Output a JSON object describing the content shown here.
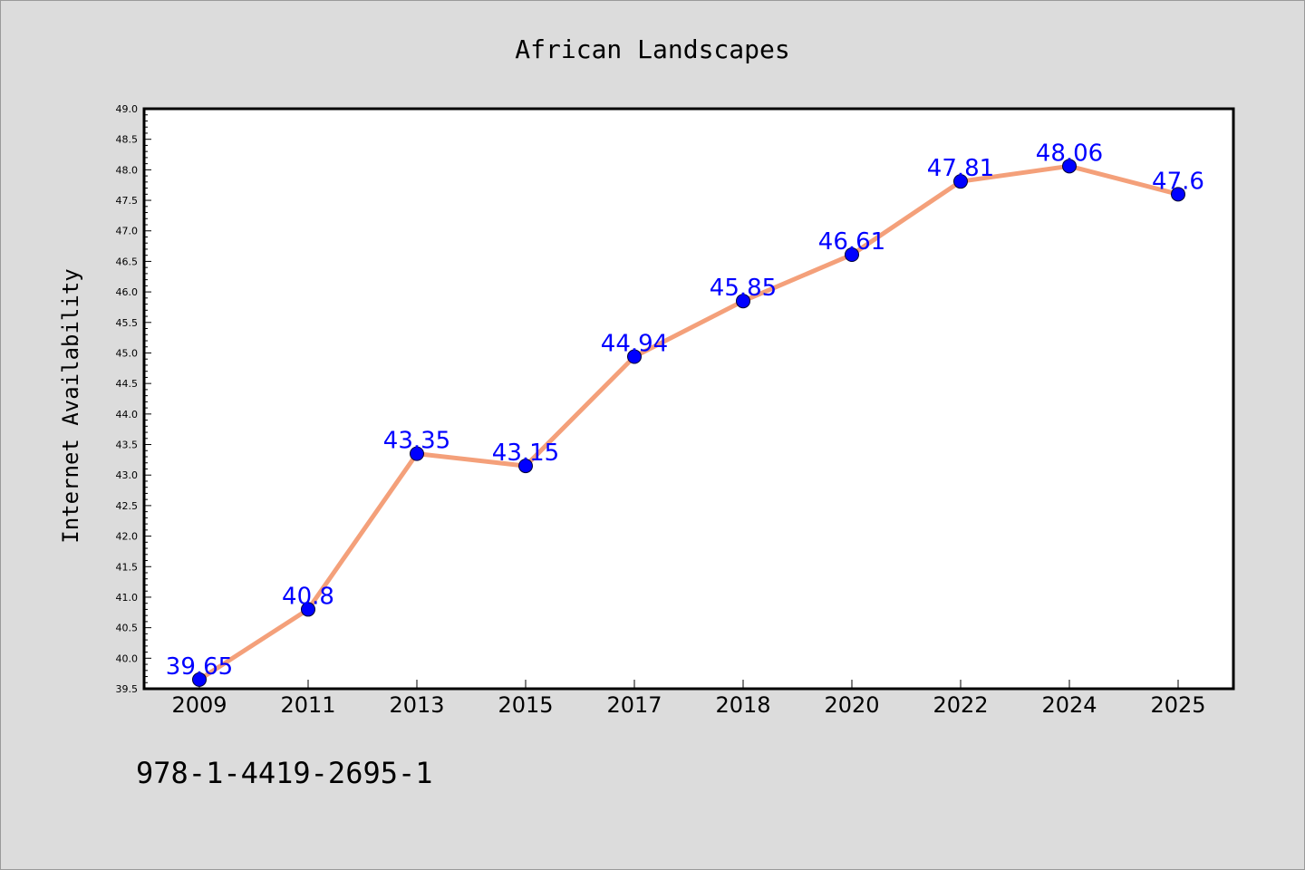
{
  "chart_data": {
    "type": "line",
    "title": "African Landscapes",
    "xlabel": "",
    "ylabel": "Internet Availability",
    "categories": [
      "2009",
      "2011",
      "2013",
      "2015",
      "2017",
      "2018",
      "2020",
      "2022",
      "2024",
      "2025"
    ],
    "series": [
      {
        "values": [
          39.65,
          40.8,
          43.35,
          43.15,
          44.94,
          45.85,
          46.61,
          47.81,
          48.06,
          47.6
        ],
        "labels": [
          "39.65",
          "40.8",
          "43.35",
          "43.15",
          "44.94",
          "45.85",
          "46.61",
          "47.81",
          "48.06",
          "47.6"
        ],
        "line_color": "#f4a07a",
        "marker_color": "#0000ff"
      }
    ],
    "ylim": [
      39.5,
      49.0
    ],
    "yticks": [
      "39.5",
      "40.0",
      "40.5",
      "41.0",
      "41.5",
      "42.0",
      "42.5",
      "43.0",
      "43.5",
      "44.0",
      "44.5",
      "45.0",
      "45.5",
      "46.0",
      "46.5",
      "47.0",
      "47.5",
      "48.0",
      "48.5",
      "49.0"
    ],
    "grid": false,
    "legend": "none",
    "label_color": "#0000ff"
  },
  "footnote": "978-1-4419-2695-1",
  "colors": {
    "background": "#dcdcdc",
    "plot_background": "#ffffff",
    "axis": "#000000"
  }
}
